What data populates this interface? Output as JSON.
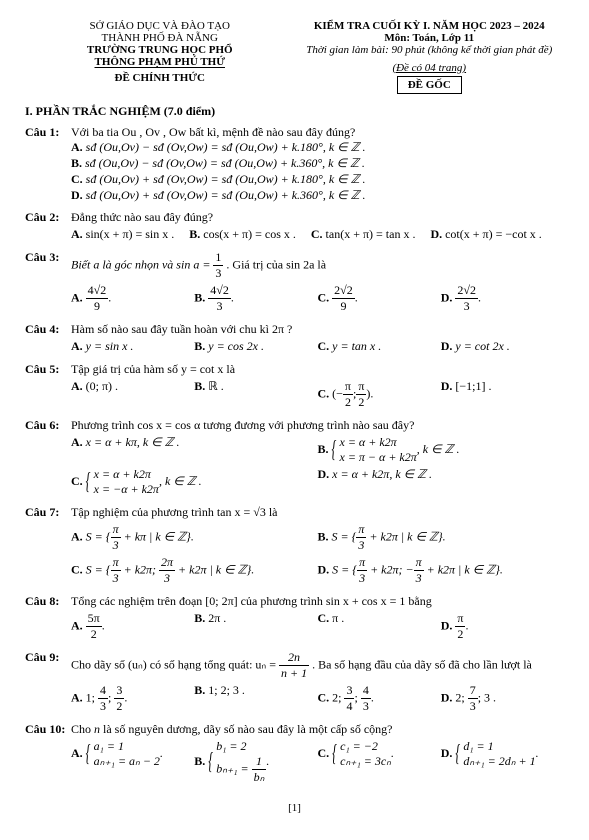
{
  "header": {
    "left_line1": "SỞ GIÁO DỤC VÀ ĐÀO TẠO",
    "left_line2": "THÀNH PHỐ ĐÀ NẴNG",
    "left_line3": "TRƯỜNG TRUNG HỌC PHỔ",
    "left_line4": "THÔNG PHẠM PHÚ THỨ",
    "left_line5": "ĐỀ CHÍNH THỨC",
    "right_line1": "KIỂM TRA CUỐI KỲ I. NĂM HỌC 2023 – 2024",
    "right_line2": "Môn: Toán, Lớp 11",
    "right_line3": "Thời gian làm bài: 90 phút (không kể thời gian phát đề)",
    "right_line4": "(Đề có 04 trang)",
    "right_box": "ĐỀ GỐC"
  },
  "section": {
    "title": "I. PHẦN TRẮC NGHIỆM (7.0 điểm)"
  },
  "q1": {
    "label": "Câu 1:",
    "text": "Với ba tia Ou , Ov , Ow bất kì, mệnh đề nào sau đây đúng?",
    "A_lbl": "A.",
    "A": "sđ (Ou,Ov) − sđ (Ov,Ow) = sđ (Ou,Ow) + k.180°, k ∈ ℤ .",
    "B_lbl": "B.",
    "B": "sđ (Ou,Ov) − sđ (Ov,Ow) = sđ (Ou,Ow) + k.360°, k ∈ ℤ .",
    "C_lbl": "C.",
    "C": "sđ (Ou,Ov) + sđ (Ov,Ow) = sđ (Ou,Ow) + k.180°, k ∈ ℤ .",
    "D_lbl": "D.",
    "D": "sđ (Ou,Ov) + sđ (Ov,Ow) = sđ (Ou,Ow) + k.360°, k ∈ ℤ ."
  },
  "q2": {
    "label": "Câu 2:",
    "text": "Đẳng thức nào sau đây đúng?",
    "A_lbl": "A.",
    "A": "sin(x + π) = sin x .",
    "B_lbl": "B.",
    "B": "cos(x + π) = cos x .",
    "C_lbl": "C.",
    "C": "tan(x + π) = tan x .",
    "D_lbl": "D.",
    "D": "cot(x + π) = −cot x ."
  },
  "q3": {
    "label": "Câu 3:",
    "text_before": "Biết a là góc nhọn và sin a = ",
    "text_after": ". Giá trị của sin 2a là",
    "frac_num": "1",
    "frac_den": "3",
    "A_lbl": "A.",
    "A_num": "4√2",
    "A_den": "9",
    "A_end": ".",
    "B_lbl": "B.",
    "B_num": "4√2",
    "B_den": "3",
    "B_end": ".",
    "C_lbl": "C.",
    "C_num": "2√2",
    "C_den": "9",
    "C_end": ".",
    "D_lbl": "D.",
    "D_num": "2√2",
    "D_den": "3",
    "D_end": "."
  },
  "q4": {
    "label": "Câu 4:",
    "text": "Hàm số nào sau đây tuần hoàn với chu kì 2π ?",
    "A_lbl": "A.",
    "A": "y = sin x .",
    "B_lbl": "B.",
    "B": "y = cos 2x .",
    "C_lbl": "C.",
    "C": "y = tan x .",
    "D_lbl": "D.",
    "D": "y = cot 2x ."
  },
  "q5": {
    "label": "Câu 5:",
    "text": "Tập giá trị của hàm số y = cot x là",
    "A_lbl": "A.",
    "A": "(0; π) .",
    "B_lbl": "B.",
    "B": "ℝ .",
    "C_lbl": "C.",
    "C_lp": "(",
    "C_n1": "π",
    "C_d1": "2",
    "C_sep": ";",
    "C_n2": "π",
    "C_d2": "2",
    "C_rp": ").",
    "C_neg": "−",
    "D_lbl": "D.",
    "D": "[−1;1] ."
  },
  "q6": {
    "label": "Câu 6:",
    "text": "Phương trình cos x = cos α tương đương với phương trình nào sau đây?",
    "A_lbl": "A.",
    "A": "x = α + kπ, k ∈ ℤ .",
    "B_lbl": "B.",
    "B_l1": "x = α + k2π",
    "B_l2": "x = π − α + k2π",
    "B_end": ", k ∈ ℤ .",
    "C_lbl": "C.",
    "C_l1": "x = α + k2π",
    "C_l2": "x = −α + k2π",
    "C_end": ", k ∈ ℤ .",
    "D_lbl": "D.",
    "D": "x = α + k2π, k ∈ ℤ ."
  },
  "q7": {
    "label": "Câu 7:",
    "text": "Tập nghiệm của phương trình tan x = √3 là",
    "A_lbl": "A.",
    "A_pre": "S = {",
    "A_n": "π",
    "A_d": "3",
    "A_post": " + kπ | k ∈ ℤ}.",
    "B_lbl": "B.",
    "B_pre": "S = {",
    "B_n": "π",
    "B_d": "3",
    "B_post": " + k2π | k ∈ ℤ}.",
    "C_lbl": "C.",
    "C_pre": "S = {",
    "C_n1": "π",
    "C_d1": "3",
    "C_mid": " + k2π; ",
    "C_n2": "2π",
    "C_d2": "3",
    "C_post": " + k2π | k ∈ ℤ}.",
    "D_lbl": "D.",
    "D_pre": "S = {",
    "D_n1": "π",
    "D_d1": "3",
    "D_mid": " + k2π; −",
    "D_n2": "π",
    "D_d2": "3",
    "D_post": " + k2π | k ∈ ℤ}."
  },
  "q8": {
    "label": "Câu 8:",
    "text": "Tổng các nghiệm trên đoạn [0; 2π] của phương trình sin x + cos x = 1 bằng",
    "A_lbl": "A.",
    "A_n": "5π",
    "A_d": "2",
    "A_end": ".",
    "B_lbl": "B.",
    "B": "2π .",
    "C_lbl": "C.",
    "C": "π .",
    "D_lbl": "D.",
    "D_n": "π",
    "D_d": "2",
    "D_end": "."
  },
  "q9": {
    "label": "Câu 9:",
    "text_before": "Cho dãy số (uₙ) có số hạng tổng quát: uₙ = ",
    "text_after": ". Ba số hạng đầu của dãy số đã cho lần lượt là",
    "frac_num": "2n",
    "frac_den": "n + 1",
    "A_lbl": "A.",
    "A_pre": "1; ",
    "A_n1": "4",
    "A_d1": "3",
    "A_sep": "; ",
    "A_n2": "3",
    "A_d2": "2",
    "A_end": ".",
    "B_lbl": "B.",
    "B": "1; 2; 3 .",
    "C_lbl": "C.",
    "C_pre": "2; ",
    "C_n1": "3",
    "C_d1": "4",
    "C_sep": "; ",
    "C_n2": "4",
    "C_d2": "3",
    "C_end": ".",
    "D_lbl": "D.",
    "D_pre": "2; ",
    "D_n1": "7",
    "D_d1": "3",
    "D_end": "; 3 ."
  },
  "q10": {
    "label": "Câu 10:",
    "text": "Cho n là số nguyên dương, dãy số nào sau đây là một cấp số cộng?",
    "A_lbl": "A.",
    "A_l1": "a₁ = 1",
    "A_l2": "aₙ₊₁ = aₙ − 2",
    "A_end": ".",
    "B_lbl": "B.",
    "B_l1": "b₁ = 2",
    "B_l2_pre": "bₙ₊₁ = ",
    "B_n": "1",
    "B_d": "bₙ",
    "B_end": ".",
    "C_lbl": "C.",
    "C_l1": "c₁ = −2",
    "C_l2": "cₙ₊₁ = 3cₙ",
    "C_end": ".",
    "D_lbl": "D.",
    "D_l1": "d₁ = 1",
    "D_l2": "dₙ₊₁ = 2dₙ + 1",
    "D_end": "."
  },
  "page": {
    "num": "[1]"
  }
}
